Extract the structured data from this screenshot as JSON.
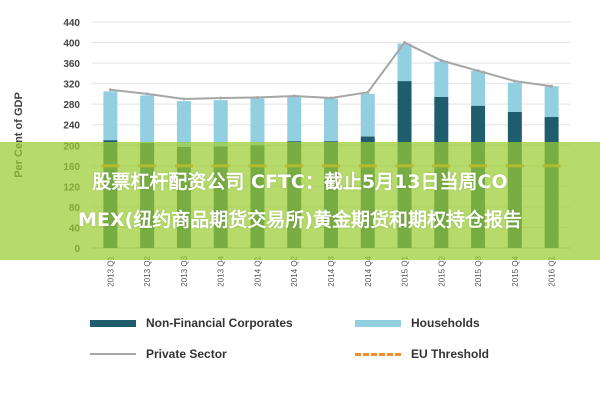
{
  "chart_data": {
    "type": "bar",
    "categories": [
      "2013 Q1",
      "2013 Q2",
      "2013 Q3",
      "2013 Q4",
      "2014 Q1",
      "2014 Q2",
      "2014 Q3",
      "2014 Q4",
      "2015 Q1",
      "2015 Q2",
      "2015 Q3",
      "2015 Q4",
      "2016 Q1"
    ],
    "series": [
      {
        "name": "Non-Financial Corporates",
        "kind": "stacked-bar",
        "color": "#1f5c6e",
        "values": [
          210,
          205,
          197,
          198,
          200,
          208,
          208,
          217,
          325,
          294,
          277,
          265,
          255
        ]
      },
      {
        "name": "Households",
        "kind": "stacked-bar",
        "color": "#92cfe1",
        "values": [
          95,
          92,
          89,
          90,
          91,
          86,
          83,
          83,
          73,
          69,
          68,
          57,
          60
        ]
      },
      {
        "name": "Private Sector",
        "kind": "line",
        "color": "#a6a6a6",
        "values": [
          308,
          300,
          290,
          292,
          293,
          296,
          292,
          303,
          400,
          365,
          345,
          325,
          315
        ]
      },
      {
        "name": "EU Threshold",
        "kind": "dashed-line",
        "color": "#f28c28",
        "values": [
          160,
          160,
          160,
          160,
          160,
          160,
          160,
          160,
          160,
          160,
          160,
          160,
          160
        ]
      }
    ],
    "ylabel": "Per Cent of GDP",
    "ylim": [
      0,
      440
    ],
    "yticks": [
      0,
      40,
      80,
      120,
      160,
      200,
      240,
      280,
      320,
      360,
      400,
      440
    ],
    "grid": true,
    "legend_position": "bottom"
  },
  "overlay": {
    "line1": "股票杠杆配资公司 CFTC：截止5月13日当周CO",
    "line2": "MEX(纽约商品期货交易所)黄金期货和期权持仓报告"
  }
}
